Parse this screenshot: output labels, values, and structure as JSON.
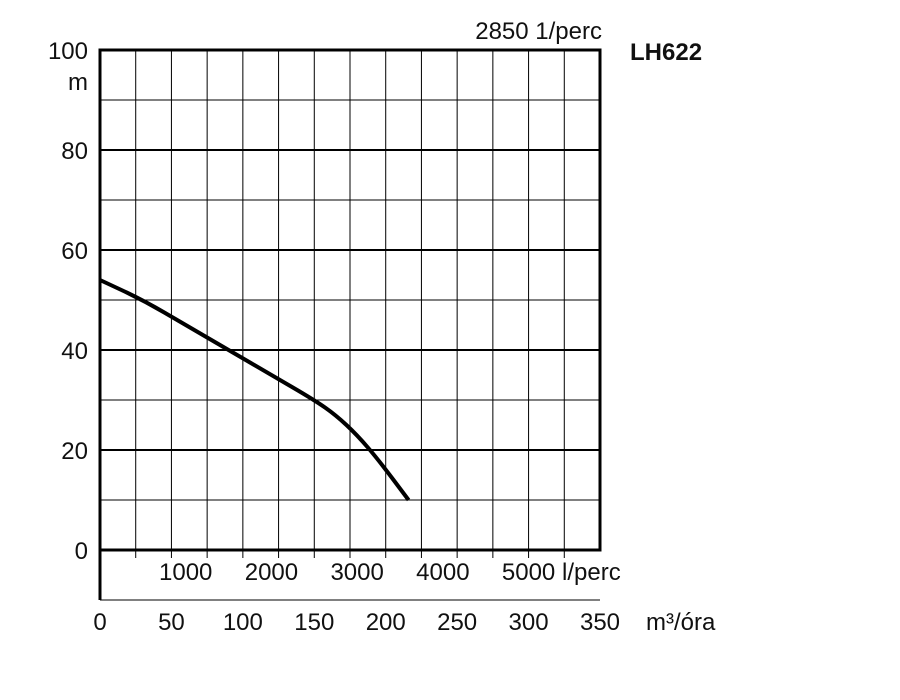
{
  "chart_data": {
    "type": "line",
    "model": "LH622",
    "speed_label": "2850 1/perc",
    "y_unit": "m",
    "x_unit": "m³/óra",
    "flow_unit_secondary": "l/perc",
    "ylim": [
      0,
      100
    ],
    "xlim": [
      0,
      350
    ],
    "y_ticks": [
      0,
      20,
      40,
      60,
      80,
      100
    ],
    "x_ticks": [
      0,
      50,
      100,
      150,
      200,
      250,
      300,
      350
    ],
    "secondary_x_ticks": [
      1000,
      2000,
      3000,
      4000,
      5000
    ],
    "grid": true,
    "series": [
      {
        "x": [
          0,
          30,
          60,
          90,
          120,
          150,
          165,
          180,
          195,
          216
        ],
        "y": [
          54,
          50,
          45,
          40,
          35,
          30,
          27,
          23,
          18,
          10
        ]
      }
    ]
  },
  "colors": {
    "line": "#000000",
    "grid": "#000000",
    "background": "#ffffff"
  }
}
